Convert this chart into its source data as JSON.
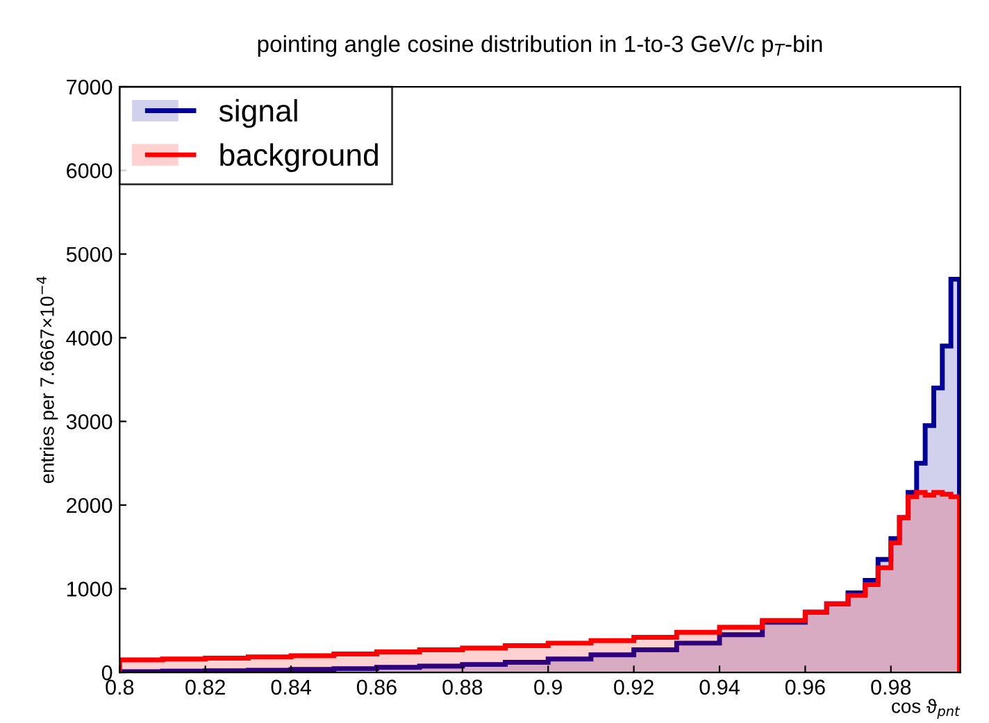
{
  "chart_data": {
    "type": "histogram",
    "title": "pointing angle cosine distribution in 1-to-3 GeV/c p$_{T}$-bin",
    "xlabel": "cos ϑ$_{pnt}$",
    "ylabel": "entries per 7.6667×10$^{−4}$",
    "bins": [
      0.8,
      0.81,
      0.82,
      0.83,
      0.84,
      0.85,
      0.86,
      0.87,
      0.88,
      0.89,
      0.9,
      0.91,
      0.92,
      0.93,
      0.94,
      0.95,
      0.96,
      0.965,
      0.97,
      0.974,
      0.977,
      0.98,
      0.982,
      0.984,
      0.986,
      0.988,
      0.99,
      0.992,
      0.994,
      0.996
    ],
    "series": [
      {
        "name": "signal",
        "color": "#000099",
        "values": [
          10,
          15,
          20,
          25,
          35,
          45,
          60,
          75,
          95,
          120,
          160,
          210,
          270,
          350,
          450,
          600,
          720,
          820,
          950,
          1100,
          1350,
          1600,
          1850,
          2150,
          2500,
          2950,
          3400,
          3900,
          4700
        ]
      },
      {
        "name": "background",
        "color": "#ff0000",
        "values": [
          150,
          160,
          170,
          185,
          200,
          220,
          245,
          270,
          290,
          320,
          350,
          380,
          420,
          480,
          540,
          620,
          720,
          820,
          920,
          1050,
          1250,
          1550,
          1850,
          2100,
          2150,
          2120,
          2150,
          2130,
          2100
        ]
      }
    ],
    "xlim": [
      0.8,
      0.9962
    ],
    "xticks": [
      0.8,
      0.82,
      0.84,
      0.86,
      0.88,
      0.9,
      0.92,
      0.94,
      0.96,
      0.98
    ],
    "ylim": [
      0,
      7000
    ],
    "yticks": [
      0,
      1000,
      2000,
      3000,
      4000,
      5000,
      6000,
      7000
    ],
    "legend": "top left",
    "grid": false
  }
}
